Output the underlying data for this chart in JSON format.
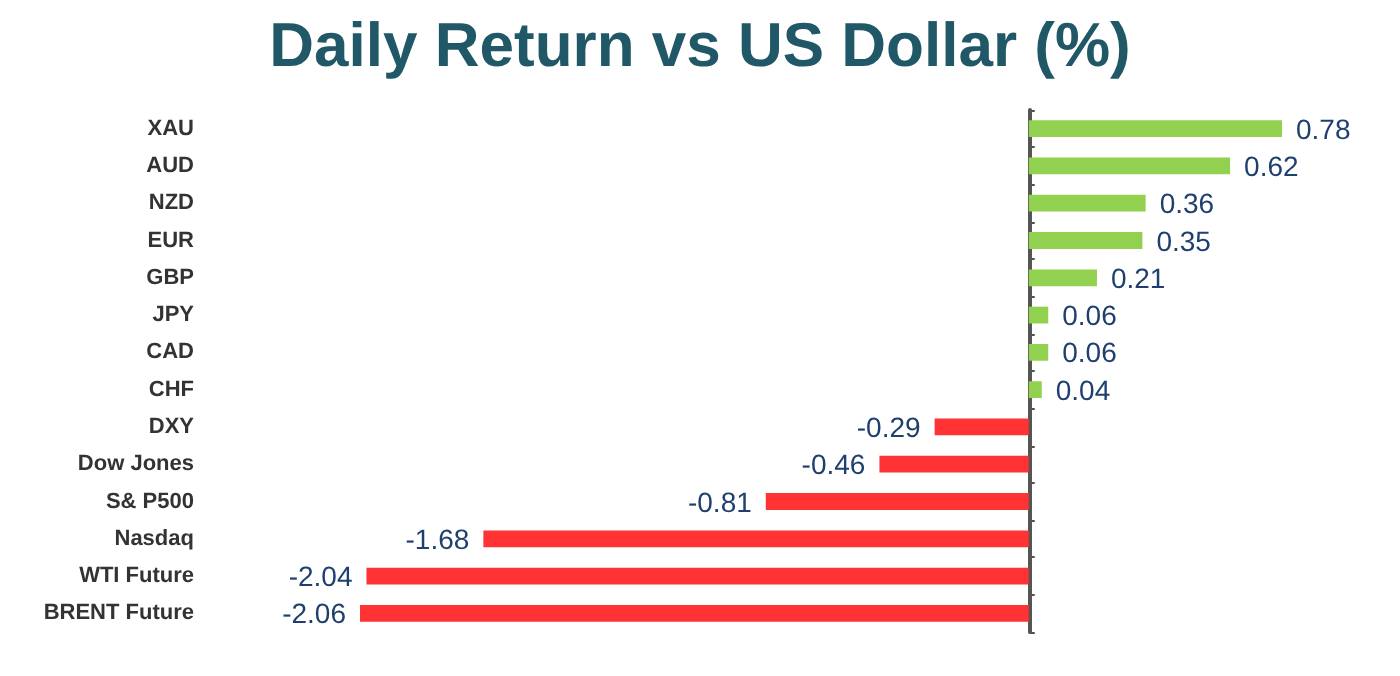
{
  "chart_data": {
    "type": "bar",
    "orientation": "horizontal",
    "title": "Daily Return vs US Dollar (%)",
    "categories": [
      "XAU",
      "AUD",
      "NZD",
      "EUR",
      "GBP",
      "JPY",
      "CAD",
      "CHF",
      "DXY",
      "Dow Jones",
      "S& P500",
      "Nasdaq",
      "WTI Future",
      "BRENT Future"
    ],
    "values": [
      0.78,
      0.62,
      0.36,
      0.35,
      0.21,
      0.06,
      0.06,
      0.04,
      -0.29,
      -0.46,
      -0.81,
      -1.68,
      -2.04,
      -2.06
    ],
    "colors": [
      "#92d050",
      "#92d050",
      "#92d050",
      "#92d050",
      "#92d050",
      "#92d050",
      "#92d050",
      "#92d050",
      "#ff3333",
      "#ff3333",
      "#ff3333",
      "#ff3333",
      "#ff3333",
      "#ff3333"
    ],
    "data_labels": true,
    "tick_labels": "y"
  }
}
